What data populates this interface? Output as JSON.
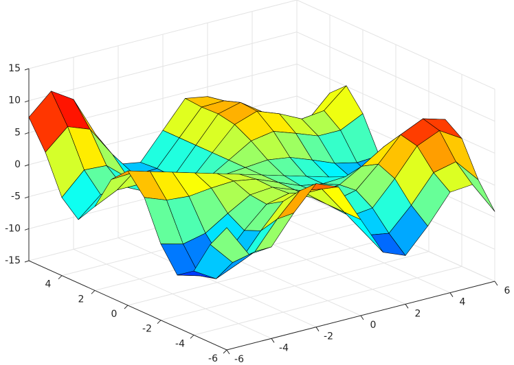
{
  "chart_data": {
    "type": "surface",
    "x": [
      -6,
      -5,
      -4,
      -3,
      -2,
      -1,
      0,
      1,
      2,
      3,
      4,
      5,
      6
    ],
    "y": [
      -6,
      -5,
      -4,
      -3,
      -2,
      -1,
      0,
      1,
      2,
      3,
      4,
      5,
      6
    ],
    "z": [
      [
        4.1,
        -1.0,
        -0.7,
        3.7,
        7.4,
        6.0,
        0,
        -6.0,
        -7.4,
        -3.7,
        0.7,
        1.0,
        -4.1
      ],
      [
        0.3,
        -3.4,
        -2.6,
        1.6,
        5.1,
        4.5,
        0,
        -4.5,
        -5.1,
        -1.6,
        2.6,
        3.4,
        -0.3
      ],
      [
        -5.0,
        -7.1,
        -5.6,
        -1.4,
        2.3,
        2.7,
        0,
        -2.7,
        -2.3,
        1.4,
        5.6,
        7.1,
        5.0
      ],
      [
        -6.8,
        -7.8,
        -6.2,
        -2.5,
        0.7,
        1.5,
        0,
        -1.5,
        -0.7,
        2.5,
        6.2,
        7.8,
        6.8
      ],
      [
        -3.1,
        -4.0,
        -3.2,
        -1.0,
        1.0,
        1.3,
        0,
        -1.3,
        -1.0,
        1.0,
        3.2,
        4.0,
        3.1
      ],
      [
        3.0,
        1.7,
        1.4,
        1.8,
        2.0,
        1.4,
        0,
        -1.4,
        -2.0,
        -1.8,
        -1.4,
        -1.7,
        -3.0
      ],
      [
        6,
        5,
        4,
        3,
        2,
        1,
        0,
        -1,
        -2,
        -3,
        -4,
        -5,
        -6
      ],
      [
        3.5,
        3.7,
        2.9,
        1.5,
        0.2,
        -0.3,
        0,
        0.3,
        -0.2,
        -1.5,
        -2.9,
        -3.7,
        -3.5
      ],
      [
        -1.9,
        -0.2,
        -0.2,
        -1.5,
        -2.7,
        -2.1,
        0,
        2.1,
        2.7,
        1.5,
        0.2,
        0.2,
        1.9
      ],
      [
        -5.1,
        -2.1,
        -1.7,
        -3.4,
        -4.7,
        -3.5,
        0,
        3.5,
        4.7,
        3.4,
        1.7,
        2.1,
        5.1
      ],
      [
        -2.8,
        0.6,
        0.4,
        -2.5,
        -4.9,
        -4.0,
        0,
        4.0,
        4.9,
        2.5,
        -0.4,
        -0.6,
        2.8
      ],
      [
        3.1,
        6.2,
        4.9,
        0.1,
        -4.0,
        -3.9,
        0,
        3.9,
        4.0,
        -0.1,
        -4.9,
        -6.2,
        -3.1
      ],
      [
        7.4,
        10.6,
        8.4,
        2.0,
        -3.5,
        -4.1,
        0,
        4.1,
        3.5,
        -2.0,
        -8.4,
        -10.6,
        -7.4
      ]
    ],
    "xlim": [
      -6,
      6
    ],
    "ylim": [
      -6,
      6
    ],
    "zlim": [
      -15,
      15
    ],
    "xticks": [
      -6,
      -4,
      -2,
      0,
      2,
      4,
      6
    ],
    "yticks": [
      -6,
      -4,
      -2,
      0,
      2,
      4
    ],
    "zticks": [
      -15,
      -10,
      -5,
      0,
      5,
      10,
      15
    ],
    "grid": true,
    "colormap": "jet",
    "edge_color": "#000000"
  }
}
